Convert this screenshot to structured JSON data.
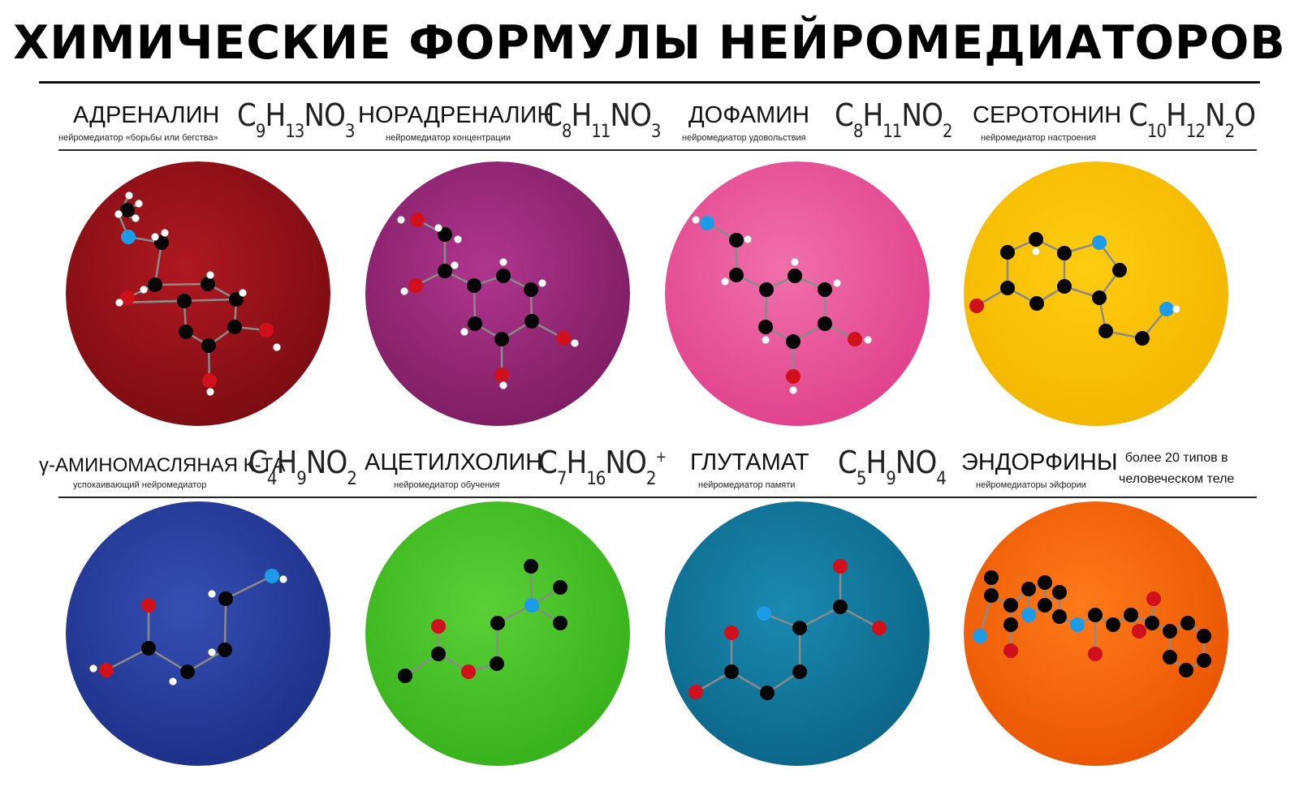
{
  "title": "ХИМИЧЕСКИЕ ФОРМУЛЫ НЕЙРОМЕДИАТОРОВ",
  "colors": {
    "carbon": "#050505",
    "hydrogen": "#ffffff",
    "oxygen": "#d0101a",
    "nitrogen": "#1c9be8",
    "bond": "#8a8a8a"
  },
  "cards": [
    {
      "name": "АДРЕНАЛИН",
      "description": "нейромедиатор «борьбы или бегства»",
      "formula": [
        [
          "C",
          "9"
        ],
        [
          "H",
          "13"
        ],
        [
          "NO",
          "3"
        ]
      ],
      "circle_color": "#b01820",
      "circle_color_edge": "#7a0c12"
    },
    {
      "name": "НОРАДРЕНАЛИН",
      "description": "нейромедиатор концентрации",
      "formula": [
        [
          "C",
          "8"
        ],
        [
          "H",
          "11"
        ],
        [
          "NO",
          "3"
        ]
      ],
      "circle_color": "#b0368e",
      "circle_color_edge": "#7c1c62"
    },
    {
      "name": "ДОФАМИН",
      "description": "нейромедиатор удовольствия",
      "formula": [
        [
          "C",
          "8"
        ],
        [
          "H",
          "11"
        ],
        [
          "NO",
          "2"
        ]
      ],
      "circle_color": "#f070aa",
      "circle_color_edge": "#e0408a"
    },
    {
      "name": "СЕРОТОНИН",
      "description": "нейромедиатор настроения",
      "formula": [
        [
          "C",
          "10"
        ],
        [
          "H",
          "12"
        ],
        [
          "N",
          "2"
        ],
        [
          "O",
          ""
        ]
      ],
      "circle_color": "#ffcc10",
      "circle_color_edge": "#f2b600"
    },
    {
      "name": "γ-АМИНОМАСЛЯНАЯ К-ТА",
      "description": "успокаивающий нейромедиатор",
      "formula": [
        [
          "C",
          "4"
        ],
        [
          "H",
          "9"
        ],
        [
          "NO",
          "2"
        ]
      ],
      "circle_color": "#3550b4",
      "circle_color_edge": "#1c2f86"
    },
    {
      "name": "АЦЕТИЛХОЛИН",
      "description": "нейромедиатор обучения",
      "formula": [
        [
          "C",
          "7"
        ],
        [
          "H",
          "16"
        ],
        [
          "NO",
          "2"
        ]
      ],
      "formula_sup": "+",
      "circle_color": "#5ad036",
      "circle_color_edge": "#36b01a"
    },
    {
      "name": "ГЛУТАМАТ",
      "description": "нейромедиатор памяти",
      "formula": [
        [
          "C",
          "5"
        ],
        [
          "H",
          "9"
        ],
        [
          "NO",
          "4"
        ]
      ],
      "circle_color": "#1a8ab0",
      "circle_color_edge": "#0c6488"
    },
    {
      "name": "ЭНДОРФИНЫ",
      "description": "нейромедиаторы эйфории",
      "note": [
        "более 20 типов в",
        "человеческом теле"
      ],
      "circle_color": "#ff7a1a",
      "circle_color_edge": "#e85400"
    }
  ]
}
